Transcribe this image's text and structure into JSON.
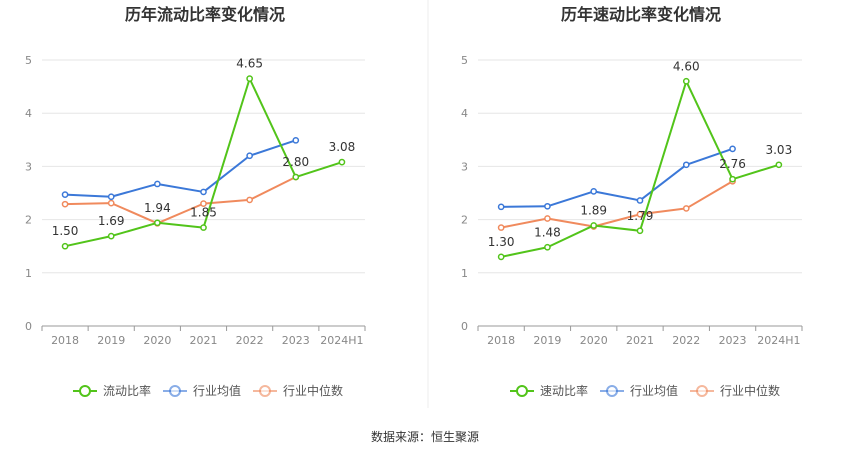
{
  "footer": "数据来源：恒生聚源",
  "colors": {
    "company": "#52c41a",
    "industry_avg": "#3b78d8",
    "industry_median": "#f08a5d",
    "grid": "#e6e6e6",
    "axis": "#999999",
    "text": "#333333",
    "tick": "#888888"
  },
  "chart_data": [
    {
      "type": "line",
      "title": "历年流动比率变化情况",
      "categories": [
        "2018",
        "2019",
        "2020",
        "2021",
        "2022",
        "2023",
        "2024H1"
      ],
      "ylim": [
        0,
        5
      ],
      "yticks": [
        0,
        1,
        2,
        3,
        4,
        5
      ],
      "grid": true,
      "legend_position": "bottom",
      "series": [
        {
          "name": "流动比率",
          "color_key": "company",
          "values": [
            1.5,
            1.69,
            1.94,
            1.85,
            4.65,
            2.8,
            3.08
          ],
          "labels": [
            "1.50",
            "1.69",
            "1.94",
            "1.85",
            "4.65",
            "2.80",
            "3.08"
          ]
        },
        {
          "name": "行业均值",
          "color_key": "industry_avg",
          "values": [
            2.47,
            2.43,
            2.67,
            2.52,
            3.2,
            3.49,
            null
          ]
        },
        {
          "name": "行业中位数",
          "color_key": "industry_median",
          "values": [
            2.29,
            2.31,
            1.93,
            2.3,
            2.37,
            2.8,
            null
          ]
        }
      ]
    },
    {
      "type": "line",
      "title": "历年速动比率变化情况",
      "categories": [
        "2018",
        "2019",
        "2020",
        "2021",
        "2022",
        "2023",
        "2024H1"
      ],
      "ylim": [
        0,
        5
      ],
      "yticks": [
        0,
        1,
        2,
        3,
        4,
        5
      ],
      "grid": true,
      "legend_position": "bottom",
      "series": [
        {
          "name": "速动比率",
          "color_key": "company",
          "values": [
            1.3,
            1.48,
            1.89,
            1.79,
            4.6,
            2.76,
            3.03
          ],
          "labels": [
            "1.30",
            "1.48",
            "1.89",
            "1.79",
            "4.60",
            "2.76",
            "3.03"
          ]
        },
        {
          "name": "行业均值",
          "color_key": "industry_avg",
          "values": [
            2.24,
            2.25,
            2.53,
            2.36,
            3.03,
            3.33,
            null
          ]
        },
        {
          "name": "行业中位数",
          "color_key": "industry_median",
          "values": [
            1.85,
            2.02,
            1.87,
            2.1,
            2.21,
            2.72,
            null
          ]
        }
      ]
    }
  ]
}
